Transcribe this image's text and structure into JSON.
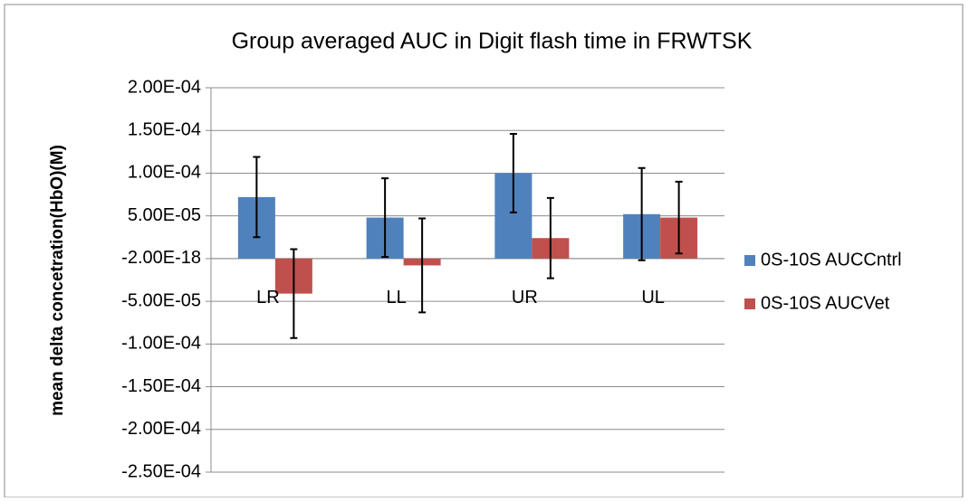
{
  "chart_data": {
    "type": "bar",
    "title": "Group averaged AUC in Digit flash time in FRWTSK",
    "y_label": "mean delta concetration(HbO)(M)",
    "categories": [
      "LR",
      "LL",
      "UR",
      "UL"
    ],
    "series": [
      {
        "name": "0S-10S AUCCntrl",
        "color": "#4f81bd",
        "values": [
          7.2e-05,
          4.8e-05,
          0.0001,
          5.2e-05
        ],
        "errors": [
          4.7e-05,
          4.6e-05,
          4.6e-05,
          5.4e-05
        ]
      },
      {
        "name": "0S-10S AUCVet",
        "color": "#c0504d",
        "values": [
          -4.1e-05,
          -8e-06,
          2.4e-05,
          4.8e-05
        ],
        "errors": [
          5.2e-05,
          5.5e-05,
          4.7e-05,
          4.2e-05
        ]
      }
    ],
    "ylim": [
      -0.00025,
      0.0002
    ],
    "yticks": [
      {
        "value": 0.0002,
        "label": "2.00E-04"
      },
      {
        "value": 0.00015,
        "label": "1.50E-04"
      },
      {
        "value": 0.0001,
        "label": "1.00E-04"
      },
      {
        "value": 5e-05,
        "label": "5.00E-05"
      },
      {
        "value": -2e-18,
        "label": "-2.00E-18"
      },
      {
        "value": -5e-05,
        "label": "-5.00E-05"
      },
      {
        "value": -0.0001,
        "label": "-1.00E-04"
      },
      {
        "value": -0.00015,
        "label": "-1.50E-04"
      },
      {
        "value": -0.0002,
        "label": "-2.00E-04"
      },
      {
        "value": -0.00025,
        "label": "-2.50E-04"
      }
    ],
    "grid": true,
    "legend": "right"
  }
}
